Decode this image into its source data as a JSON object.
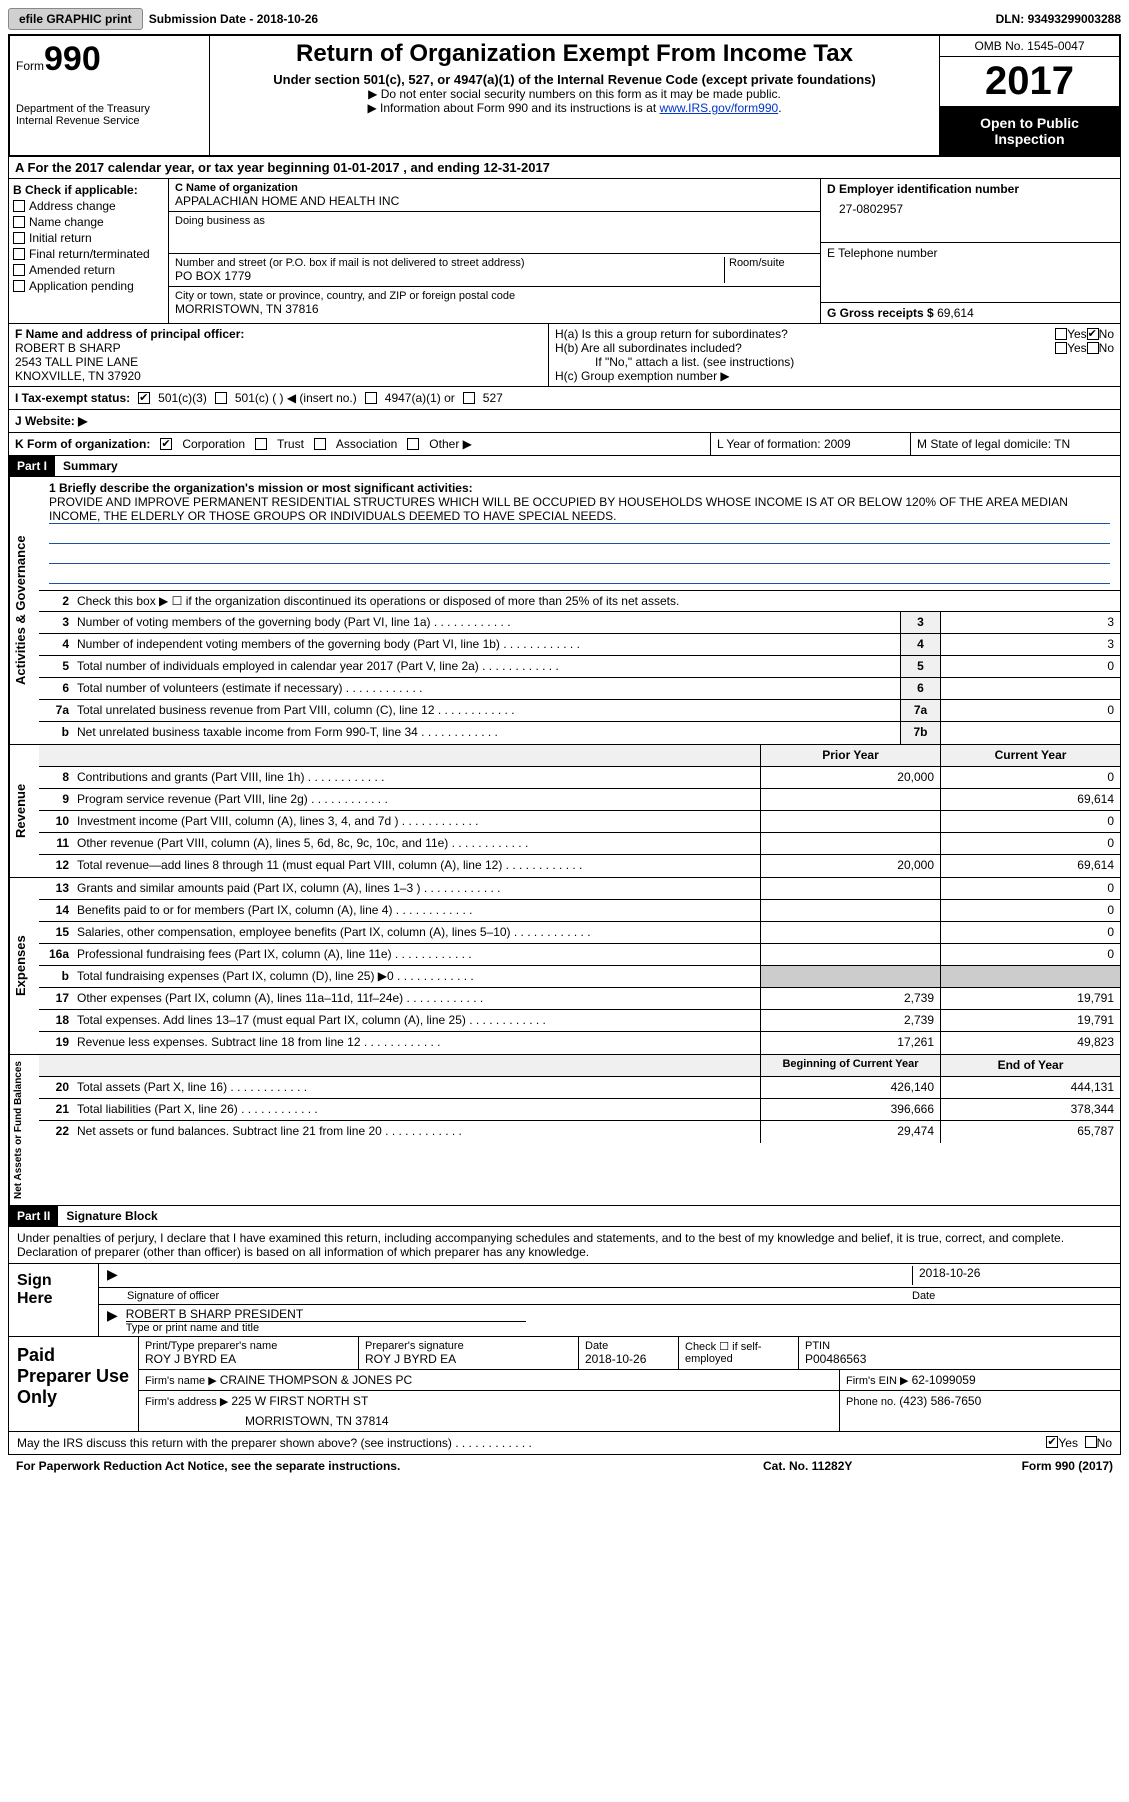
{
  "topbar": {
    "efile": "efile GRAPHIC print",
    "subdate_label": "Submission Date - ",
    "subdate": "2018-10-26",
    "dln_label": "DLN: ",
    "dln": "93493299003288"
  },
  "header": {
    "form_word": "Form",
    "form_num": "990",
    "dept1": "Department of the Treasury",
    "dept2": "Internal Revenue Service",
    "title": "Return of Organization Exempt From Income Tax",
    "sub": "Under section 501(c), 527, or 4947(a)(1) of the Internal Revenue Code (except private foundations)",
    "note1": "▶ Do not enter social security numbers on this form as it may be made public.",
    "note2": "▶ Information about Form 990 and its instructions is at ",
    "link": "www.IRS.gov/form990",
    "omb": "OMB No. 1545-0047",
    "year": "2017",
    "open": "Open to Public Inspection"
  },
  "row_a": "A  For the 2017 calendar year, or tax year beginning 01-01-2017   , and ending 12-31-2017",
  "section_b": {
    "label": "B Check if applicable:",
    "items": [
      "Address change",
      "Name change",
      "Initial return",
      "Final return/terminated",
      "Amended return",
      "Application pending"
    ]
  },
  "section_c": {
    "name_label": "C Name of organization",
    "name": "APPALACHIAN HOME AND HEALTH INC",
    "dba_label": "Doing business as",
    "dba": "",
    "addr_label": "Number and street (or P.O. box if mail is not delivered to street address)",
    "room_label": "Room/suite",
    "addr": "PO BOX 1779",
    "city_label": "City or town, state or province, country, and ZIP or foreign postal code",
    "city": "MORRISTOWN, TN  37816"
  },
  "section_d": {
    "ein_label": "D Employer identification number",
    "ein": "27-0802957",
    "tel_label": "E Telephone number",
    "tel": "",
    "gross_label": "G Gross receipts $ ",
    "gross": "69,614"
  },
  "section_f": {
    "label": "F  Name and address of principal officer:",
    "name": "ROBERT B SHARP",
    "addr1": "2543 TALL PINE LANE",
    "addr2": "KNOXVILLE, TN  37920"
  },
  "section_h": {
    "ha": "H(a)  Is this a group return for subordinates?",
    "hb": "H(b)  Are all subordinates included?",
    "hb_note": "If \"No,\" attach a list. (see instructions)",
    "hc": "H(c)  Group exemption number ▶",
    "yes": "Yes",
    "no": "No"
  },
  "tax_status": {
    "label": "I  Tax-exempt status:",
    "opt1": "501(c)(3)",
    "opt2": "501(c) (  ) ◀ (insert no.)",
    "opt3": "4947(a)(1) or",
    "opt4": "527"
  },
  "website": {
    "label": "J  Website: ▶"
  },
  "k_row": {
    "k": "K Form of organization:",
    "corp": "Corporation",
    "trust": "Trust",
    "assoc": "Association",
    "other": "Other ▶",
    "l": "L Year of formation: 2009",
    "m": "M State of legal domicile: TN"
  },
  "part1": {
    "hdr": "Part I",
    "title": "Summary",
    "mission_label": "1  Briefly describe the organization's mission or most significant activities:",
    "mission": "PROVIDE AND IMPROVE PERMANENT RESIDENTIAL STRUCTURES WHICH WILL BE OCCUPIED BY HOUSEHOLDS WHOSE INCOME IS AT OR BELOW 120% OF THE AREA MEDIAN INCOME, THE ELDERLY OR THOSE GROUPS OR INDIVIDUALS DEEMED TO HAVE SPECIAL NEEDS.",
    "line2": "Check this box ▶ ☐  if the organization discontinued its operations or disposed of more than 25% of its net assets."
  },
  "side_labels": {
    "ag": "Activities & Governance",
    "rev": "Revenue",
    "exp": "Expenses",
    "net": "Net Assets or Fund Balances"
  },
  "gov_lines": [
    {
      "n": "3",
      "t": "Number of voting members of the governing body (Part VI, line 1a)",
      "box": "3",
      "v": "3"
    },
    {
      "n": "4",
      "t": "Number of independent voting members of the governing body (Part VI, line 1b)",
      "box": "4",
      "v": "3"
    },
    {
      "n": "5",
      "t": "Total number of individuals employed in calendar year 2017 (Part V, line 2a)",
      "box": "5",
      "v": "0"
    },
    {
      "n": "6",
      "t": "Total number of volunteers (estimate if necessary)",
      "box": "6",
      "v": ""
    },
    {
      "n": "7a",
      "t": "Total unrelated business revenue from Part VIII, column (C), line 12",
      "box": "7a",
      "v": "0"
    },
    {
      "n": "b",
      "t": "Net unrelated business taxable income from Form 990-T, line 34",
      "box": "7b",
      "v": ""
    }
  ],
  "year_hdr": {
    "prior": "Prior Year",
    "curr": "Current Year"
  },
  "rev_lines": [
    {
      "n": "8",
      "t": "Contributions and grants (Part VIII, line 1h)",
      "p": "20,000",
      "c": "0"
    },
    {
      "n": "9",
      "t": "Program service revenue (Part VIII, line 2g)",
      "p": "",
      "c": "69,614"
    },
    {
      "n": "10",
      "t": "Investment income (Part VIII, column (A), lines 3, 4, and 7d )",
      "p": "",
      "c": "0"
    },
    {
      "n": "11",
      "t": "Other revenue (Part VIII, column (A), lines 5, 6d, 8c, 9c, 10c, and 11e)",
      "p": "",
      "c": "0"
    },
    {
      "n": "12",
      "t": "Total revenue—add lines 8 through 11 (must equal Part VIII, column (A), line 12)",
      "p": "20,000",
      "c": "69,614"
    }
  ],
  "exp_lines": [
    {
      "n": "13",
      "t": "Grants and similar amounts paid (Part IX, column (A), lines 1–3 )",
      "p": "",
      "c": "0"
    },
    {
      "n": "14",
      "t": "Benefits paid to or for members (Part IX, column (A), line 4)",
      "p": "",
      "c": "0"
    },
    {
      "n": "15",
      "t": "Salaries, other compensation, employee benefits (Part IX, column (A), lines 5–10)",
      "p": "",
      "c": "0"
    },
    {
      "n": "16a",
      "t": "Professional fundraising fees (Part IX, column (A), line 11e)",
      "p": "",
      "c": "0"
    },
    {
      "n": "b",
      "t": "Total fundraising expenses (Part IX, column (D), line 25) ▶0",
      "p": "GRAY",
      "c": "GRAY"
    },
    {
      "n": "17",
      "t": "Other expenses (Part IX, column (A), lines 11a–11d, 11f–24e)",
      "p": "2,739",
      "c": "19,791"
    },
    {
      "n": "18",
      "t": "Total expenses. Add lines 13–17 (must equal Part IX, column (A), line 25)",
      "p": "2,739",
      "c": "19,791"
    },
    {
      "n": "19",
      "t": "Revenue less expenses. Subtract line 18 from line 12",
      "p": "17,261",
      "c": "49,823"
    }
  ],
  "net_hdr": {
    "beg": "Beginning of Current Year",
    "end": "End of Year"
  },
  "net_lines": [
    {
      "n": "20",
      "t": "Total assets (Part X, line 16)",
      "p": "426,140",
      "c": "444,131"
    },
    {
      "n": "21",
      "t": "Total liabilities (Part X, line 26)",
      "p": "396,666",
      "c": "378,344"
    },
    {
      "n": "22",
      "t": "Net assets or fund balances. Subtract line 21 from line 20",
      "p": "29,474",
      "c": "65,787"
    }
  ],
  "part2": {
    "hdr": "Part II",
    "title": "Signature Block",
    "decl": "Under penalties of perjury, I declare that I have examined this return, including accompanying schedules and statements, and to the best of my knowledge and belief, it is true, correct, and complete. Declaration of preparer (other than officer) is based on all information of which preparer has any knowledge.",
    "sign_here": "Sign Here",
    "sig_officer": "Signature of officer",
    "sig_date": "2018-10-26",
    "date_label": "Date",
    "officer_name": "ROBERT B SHARP PRESIDENT",
    "type_name": "Type or print name and title"
  },
  "preparer": {
    "label": "Paid Preparer Use Only",
    "name_label": "Print/Type preparer's name",
    "name": "ROY J BYRD EA",
    "sig_label": "Preparer's signature",
    "sig": "ROY J BYRD EA",
    "date_label": "Date",
    "date": "2018-10-26",
    "check_label": "Check ☐ if self-employed",
    "ptin_label": "PTIN",
    "ptin": "P00486563",
    "firm_name_label": "Firm's name    ▶ ",
    "firm_name": "CRAINE THOMPSON & JONES PC",
    "firm_ein_label": "Firm's EIN ▶ ",
    "firm_ein": "62-1099059",
    "firm_addr_label": "Firm's address ▶ ",
    "firm_addr": "225 W FIRST NORTH ST",
    "firm_city": "MORRISTOWN, TN  37814",
    "phone_label": "Phone no. ",
    "phone": "(423) 586-7650"
  },
  "discuss": {
    "txt": "May the IRS discuss this return with the preparer shown above? (see instructions)",
    "yes": "Yes",
    "no": "No"
  },
  "footer": {
    "paperwork": "For Paperwork Reduction Act Notice, see the separate instructions.",
    "cat": "Cat. No. 11282Y",
    "form": "Form 990 (2017)"
  }
}
